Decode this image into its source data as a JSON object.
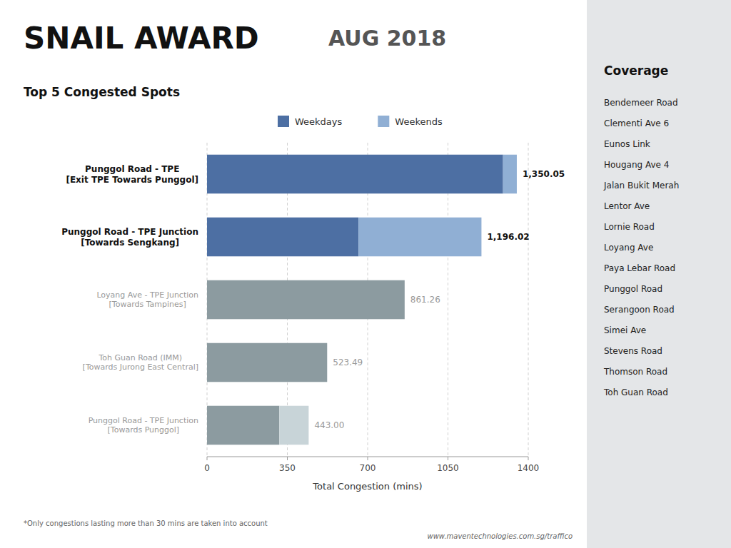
{
  "chart_data": {
    "type": "bar",
    "orientation": "horizontal",
    "stacked": true,
    "title": "SNAIL AWARD",
    "subtitle": "Top 5 Congested Spots",
    "annotations": [
      "AUG 2018",
      "*Only congestions lasting more than 30 mins are taken into account",
      "www.maventechnologies.com.sg/traffico"
    ],
    "coverage": {
      "title": "Coverage",
      "items": [
        "Bendemeer Road",
        "Clementi Ave 6",
        "Eunos Link",
        "Hougang Ave 4",
        "Jalan Bukit Merah",
        "Lentor Ave",
        "Lornie Road",
        "Loyang Ave",
        "Paya Lebar Road",
        "Punggol Road",
        "Serangoon Road",
        "Simei Ave",
        "Stevens Road",
        "Thomson Road",
        "Toh Guan Road"
      ]
    },
    "xlabel": "Total Congestion (mins)",
    "categories": [
      "Punggol Road - TPE\n[Exit TPE Towards Punggol]",
      "Punggol Road - TPE Junction\n[Towards Sengkang]",
      "Loyang Ave - TPE Junction\n[Towards Tampines]",
      "Toh Guan Road (IMM)\n[Towards Jurong East Central]",
      "Punggol Road - TPE Junction\n[Towards Punggol]"
    ],
    "highlighted": [
      true,
      true,
      false,
      false,
      false
    ],
    "series": [
      {
        "name": "Weekdays",
        "color": "#4d6fa3",
        "colors": [
          "#4d6fa3",
          "#4d6fa3",
          "#8c9ba0",
          "#8c9ba0",
          "#8c9ba0"
        ],
        "values": [
          1290,
          660,
          861.26,
          523.49,
          315
        ]
      },
      {
        "name": "Weekends",
        "color": "#90afd4",
        "colors": [
          "#90afd4",
          "#90afd4",
          "#c8d4d8",
          "#c8d4d8",
          "#c8d4d8"
        ],
        "values": [
          60.05,
          536.02,
          0,
          0,
          128
        ]
      }
    ],
    "totals": [
      1350.05,
      1196.02,
      861.26,
      523.49,
      443.0
    ],
    "total_labels": [
      "1,350.05",
      "1,196.02",
      "861.26",
      "523.49",
      "443.00"
    ],
    "data_labels": true,
    "xlim": [
      0,
      1400
    ],
    "xticks": [
      0,
      350,
      700,
      1050,
      1400
    ],
    "grid": true
  }
}
